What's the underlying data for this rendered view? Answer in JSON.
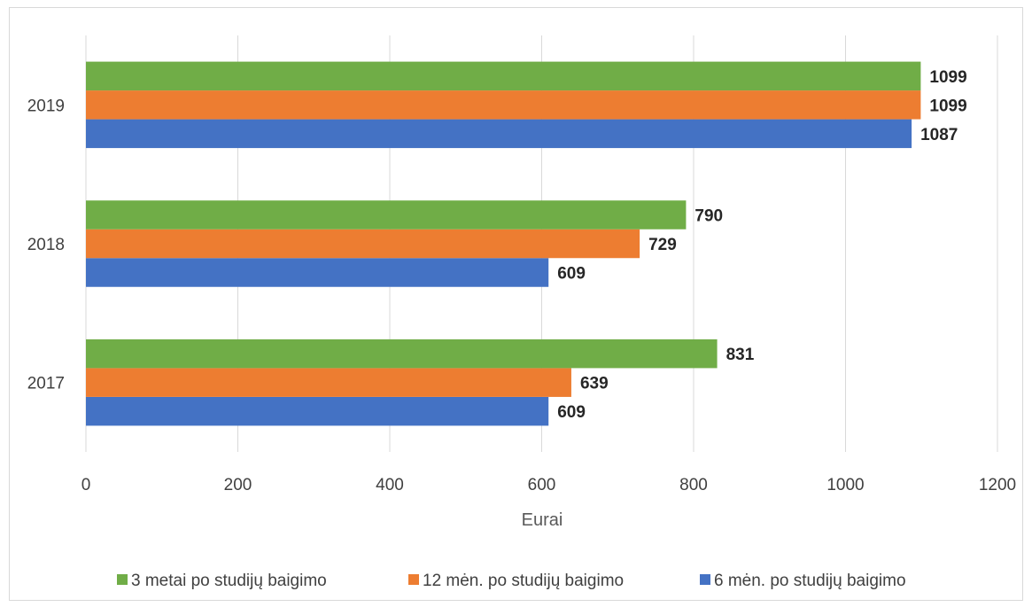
{
  "chart_data": {
    "type": "bar",
    "orientation": "horizontal",
    "categories": [
      "2017",
      "2018",
      "2019"
    ],
    "series": [
      {
        "name": "6 mėn. po studijų baigimo",
        "values": [
          609,
          609,
          1087
        ],
        "color": "#4472c4"
      },
      {
        "name": "12 mėn. po studijų baigimo",
        "values": [
          639,
          729,
          1099
        ],
        "color": "#ed7d31"
      },
      {
        "name": "3 metai po studijų baigimo",
        "values": [
          831,
          790,
          1099
        ],
        "color": "#70ad47"
      }
    ],
    "xlabel": "Eurai",
    "ylabel": "",
    "xlim": [
      0,
      1200
    ],
    "xticks": [
      "0",
      "200",
      "400",
      "600",
      "800",
      "1000",
      "1200"
    ],
    "legend_order": [
      "3 metai po studijų baigimo",
      "12 mėn. po studijų baigimo",
      "6 mėn. po studijų baigimo"
    ],
    "legend_position": "bottom",
    "grid": "vertical",
    "data_labels": true,
    "gridline_color": "#d9d9d9",
    "text_color": "#404040",
    "label_color": "#262626"
  }
}
